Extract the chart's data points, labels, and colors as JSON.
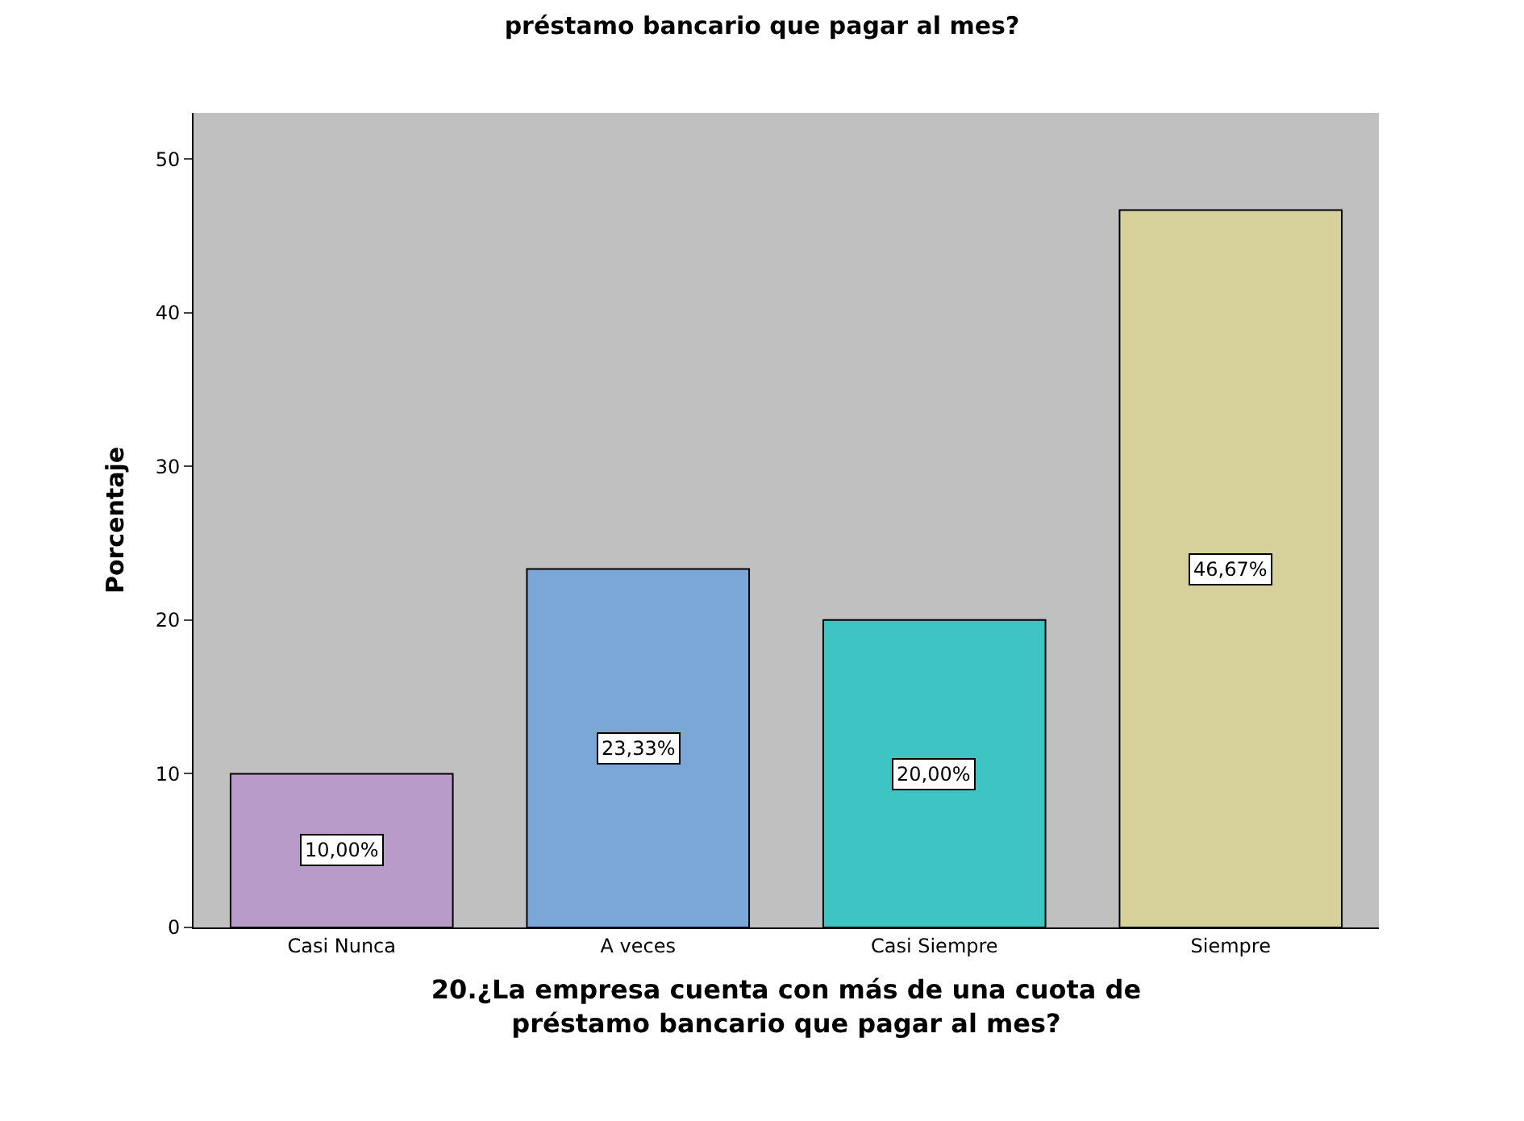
{
  "chart_data": {
    "type": "bar",
    "title": "préstamo bancario que pagar al mes?",
    "xlabel": "20.¿La empresa cuenta con más de una cuota de préstamo bancario que pagar al mes?",
    "ylabel": "Porcentaje",
    "categories": [
      "Casi Nunca",
      "A veces",
      "Casi Siempre",
      "Siempre"
    ],
    "values": [
      10.0,
      23.33,
      20.0,
      46.67
    ],
    "colors": [
      "#b89bc9",
      "#7aa7d8",
      "#3fc4c4",
      "#d6d19a"
    ],
    "value_labels": [
      "10,00%",
      "23,33%",
      "20,00%",
      "46,67%"
    ],
    "ylim": [
      0,
      53
    ],
    "yticks": [
      0,
      10,
      20,
      30,
      40,
      50
    ],
    "grid": false,
    "legend": false
  }
}
